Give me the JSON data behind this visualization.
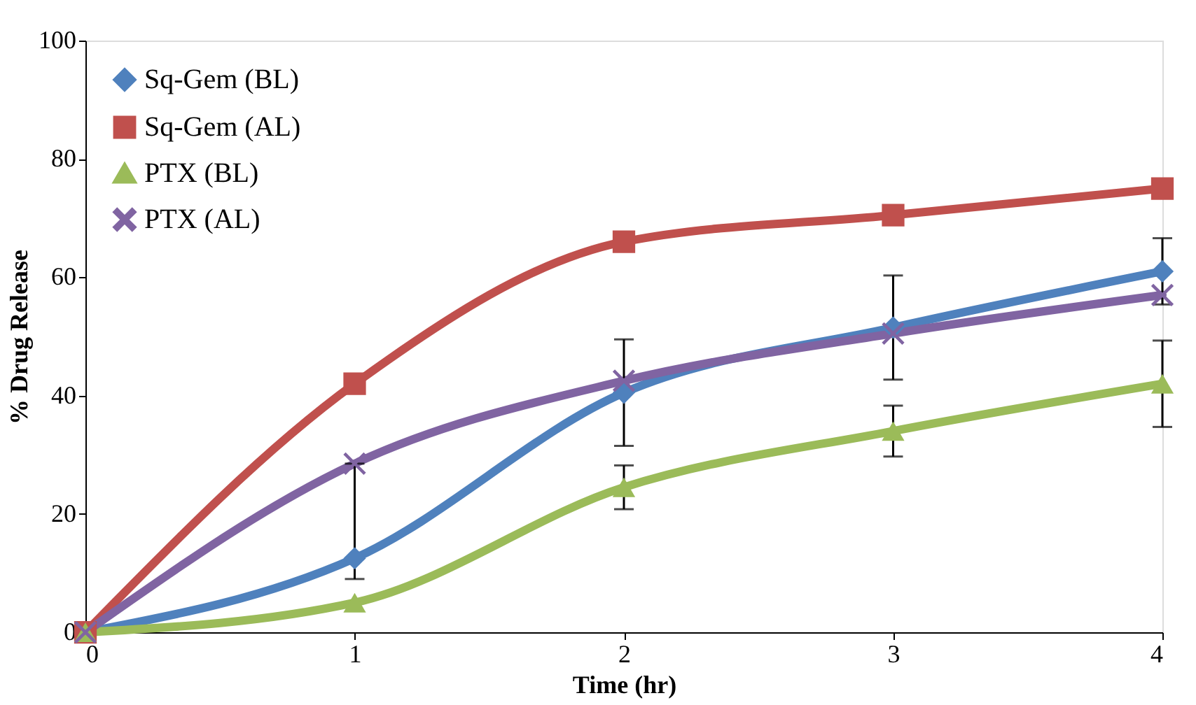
{
  "chart_data": {
    "type": "line",
    "xlabel": "Time (hr)",
    "ylabel": "% Drug Release",
    "x": [
      0,
      1,
      2,
      3,
      4
    ],
    "xlim": [
      0,
      4
    ],
    "xticks": [
      0,
      1,
      2,
      3,
      4
    ],
    "ylim": [
      0,
      100
    ],
    "yticks": [
      0,
      20,
      40,
      60,
      80,
      100
    ],
    "grid": false,
    "legend": "top left",
    "line_style": "solid",
    "series": [
      {
        "name": "Sq-Gem (BL)",
        "color": "#4f81bd",
        "marker": "diamond",
        "values": [
          0,
          12.5,
          40.5,
          51.5,
          61
        ],
        "errors": [
          null,
          null,
          9,
          8.8,
          5.6
        ]
      },
      {
        "name": "Sq-Gem (AL)",
        "color": "#c0504d",
        "marker": "square",
        "values": [
          0,
          42,
          66,
          70.5,
          75
        ],
        "errors": [
          null,
          null,
          null,
          null,
          null
        ]
      },
      {
        "name": "PTX (BL)",
        "color": "#9bbb59",
        "marker": "triangle",
        "values": [
          0,
          5,
          24.5,
          34,
          42
        ],
        "errors": [
          null,
          null,
          3.7,
          4.3,
          7.3
        ]
      },
      {
        "name": "PTX (AL)",
        "color": "#8064a2",
        "marker": "cross",
        "values": [
          0,
          28.5,
          42.5,
          50.5,
          57
        ],
        "errors": [
          null,
          [
            9,
            28.5
          ],
          null,
          null,
          null
        ]
      }
    ]
  }
}
